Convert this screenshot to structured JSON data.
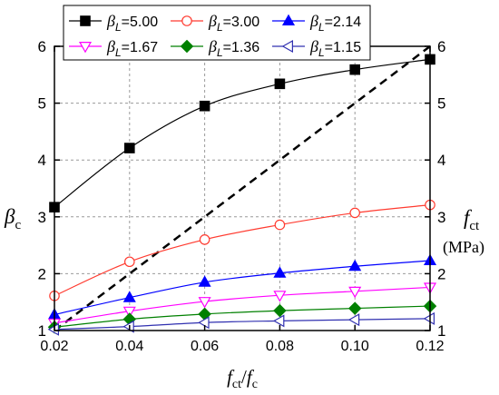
{
  "chart_data": {
    "type": "line",
    "title": "",
    "x": [
      0.02,
      0.04,
      0.06,
      0.08,
      0.1,
      0.12
    ],
    "x_ticks": [
      "0.02",
      "0.04",
      "0.06",
      "0.08",
      "0.10",
      "0.12"
    ],
    "xlim": [
      0.02,
      0.12
    ],
    "ylim": [
      1,
      6
    ],
    "y_ticks": [
      "1",
      "2",
      "3",
      "4",
      "5",
      "6"
    ],
    "y2lim": [
      1,
      6
    ],
    "y2_ticks": [
      "1",
      "2",
      "3",
      "4",
      "5",
      "6"
    ],
    "xlabel": {
      "main": "f",
      "sub": "ct",
      "sep": "/",
      "main2": "f",
      "sub2": "c"
    },
    "ylabel": {
      "main": "β",
      "sub": "c"
    },
    "y2label": {
      "main": "f",
      "sub": "ct",
      "unit": "(MPa)"
    },
    "grid": true,
    "legend_position": "top",
    "series": [
      {
        "name_main": "β",
        "name_sub": "L",
        "name_value": "=5.00",
        "color": "#000000",
        "marker": "square-filled",
        "values": [
          3.17,
          4.21,
          4.95,
          5.34,
          5.59,
          5.77
        ]
      },
      {
        "name_main": "β",
        "name_sub": "L",
        "name_value": "=3.00",
        "color": "#ff3b30",
        "marker": "circle-open",
        "values": [
          1.61,
          2.21,
          2.6,
          2.86,
          3.07,
          3.21
        ]
      },
      {
        "name_main": "β",
        "name_sub": "L",
        "name_value": "=2.14",
        "color": "#0000ff",
        "marker": "triangle-up-filled",
        "values": [
          1.28,
          1.58,
          1.85,
          2.01,
          2.13,
          2.23
        ]
      },
      {
        "name_main": "β",
        "name_sub": "L",
        "name_value": "=1.67",
        "color": "#ff00ff",
        "marker": "triangle-down-open",
        "values": [
          1.13,
          1.34,
          1.51,
          1.62,
          1.69,
          1.76
        ]
      },
      {
        "name_main": "β",
        "name_sub": "L",
        "name_value": "=1.36",
        "color": "#008000",
        "marker": "diamond-filled",
        "values": [
          1.06,
          1.2,
          1.29,
          1.35,
          1.39,
          1.43
        ]
      },
      {
        "name_main": "β",
        "name_sub": "L",
        "name_value": "=1.15",
        "color": "#3030b0",
        "marker": "triangle-left-open",
        "values": [
          1.02,
          1.07,
          1.14,
          1.17,
          1.19,
          1.21
        ]
      }
    ],
    "fct_line": {
      "color": "#000000",
      "style": "dashed",
      "x": [
        0.02,
        0.12
      ],
      "values": [
        1.0,
        6.0
      ]
    }
  }
}
